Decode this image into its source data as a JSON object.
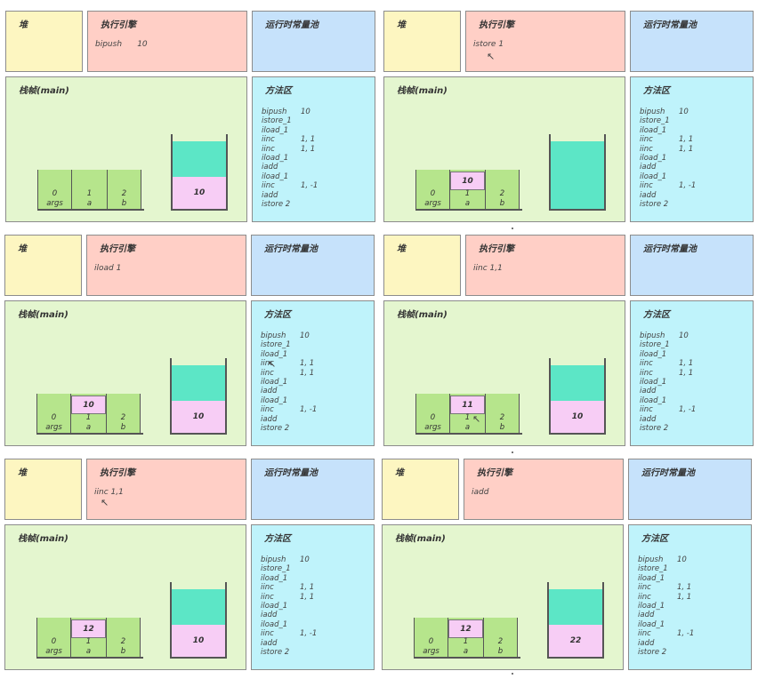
{
  "labels": {
    "heap": "堆",
    "engine": "执行引擎",
    "pool": "运行时常量池",
    "frame": "栈帧(main)",
    "method": "方法区"
  },
  "method_code": [
    {
      "op": "bipush",
      "arg": "10"
    },
    {
      "op": "istore_1",
      "arg": ""
    },
    {
      "op": "iload_1",
      "arg": ""
    },
    {
      "op": "iinc",
      "arg": "1, 1"
    },
    {
      "op": "iinc",
      "arg": "1, 1"
    },
    {
      "op": "iload_1",
      "arg": ""
    },
    {
      "op": "iadd",
      "arg": ""
    },
    {
      "op": "iload_1",
      "arg": ""
    },
    {
      "op": "iinc",
      "arg": "1, -1"
    },
    {
      "op": "iadd",
      "arg": ""
    },
    {
      "op": "istore 2",
      "arg": ""
    }
  ],
  "slots": [
    {
      "index": "0",
      "name": "args"
    },
    {
      "index": "1",
      "name": "a"
    },
    {
      "index": "2",
      "name": "b"
    }
  ],
  "panels": [
    {
      "instruction": "bipush      10",
      "local_a": "",
      "stack_top": "",
      "stack_bottom": "10",
      "stack_mode": "two"
    },
    {
      "instruction": "istore 1",
      "local_a": "10",
      "stack_top": "",
      "stack_bottom": "",
      "stack_mode": "full"
    },
    {
      "instruction": "iload 1",
      "local_a": "10",
      "stack_top": "",
      "stack_bottom": "10",
      "stack_mode": "two"
    },
    {
      "instruction": "iinc 1,1",
      "local_a": "11",
      "stack_top": "",
      "stack_bottom": "10",
      "stack_mode": "two"
    },
    {
      "instruction": "iinc 1,1",
      "local_a": "12",
      "stack_top": "",
      "stack_bottom": "10",
      "stack_mode": "two"
    },
    {
      "instruction": "iadd",
      "local_a": "12",
      "stack_top": "",
      "stack_bottom": "22",
      "stack_mode": "two"
    }
  ]
}
